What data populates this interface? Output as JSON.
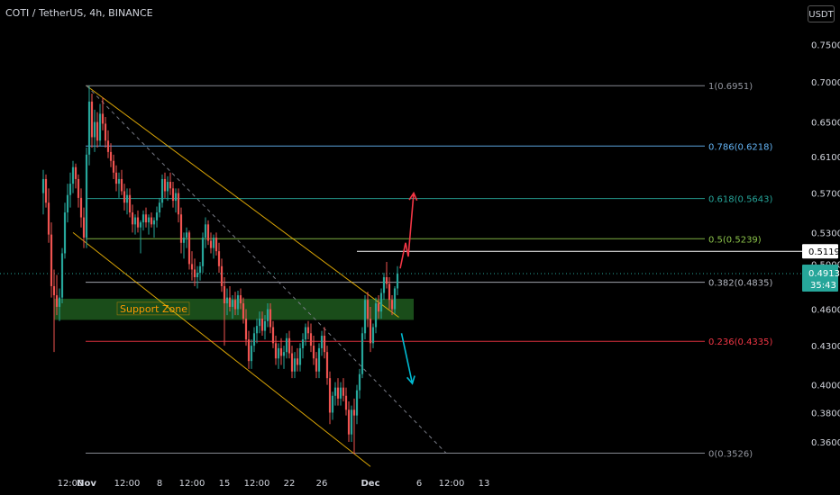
{
  "header": {
    "symbol_line": "COTI / TetherUS, 4h, BINANCE",
    "currency_button": "USDT"
  },
  "chart_data": {
    "type": "candlestick",
    "symbol": "COTI / TetherUS",
    "interval": "4h",
    "exchange": "BINANCE",
    "currency": "USDT",
    "ylim": [
      0.345,
      0.776
    ],
    "y_scale": "log",
    "y_ticks": [
      "0.7500",
      "0.7000",
      "0.6500",
      "0.6100",
      "0.5700",
      "0.5300",
      "0.5000",
      "0.4600",
      "0.4300",
      "0.4000",
      "0.3800",
      "0.3600"
    ],
    "x_ticks": [
      {
        "label": "12:00",
        "t": -24
      },
      {
        "label": "Nov",
        "t": 0
      },
      {
        "label": "12:00",
        "t": 60
      },
      {
        "label": "8",
        "t": 108
      },
      {
        "label": "12:00",
        "t": 156
      },
      {
        "label": "15",
        "t": 204
      },
      {
        "label": "12:00",
        "t": 252
      },
      {
        "label": "22",
        "t": 300
      },
      {
        "label": "26",
        "t": 348
      },
      {
        "label": "Dec",
        "t": 420
      },
      {
        "label": "6",
        "t": 492
      },
      {
        "label": "12:00",
        "t": 540
      },
      {
        "label": "13",
        "t": 588
      }
    ],
    "x_unit": "hours from Nov 1 00:00",
    "candles": [
      [
        -64,
        0.57,
        0.595,
        0.548,
        0.585
      ],
      [
        -60,
        0.585,
        0.59,
        0.555,
        0.56
      ],
      [
        -56,
        0.56,
        0.575,
        0.52,
        0.528
      ],
      [
        -52,
        0.528,
        0.54,
        0.47,
        0.48
      ],
      [
        -48,
        0.48,
        0.495,
        0.425,
        0.472
      ],
      [
        -44,
        0.472,
        0.49,
        0.455,
        0.462
      ],
      [
        -40,
        0.462,
        0.478,
        0.45,
        0.47
      ],
      [
        -36,
        0.47,
        0.515,
        0.465,
        0.51
      ],
      [
        -32,
        0.51,
        0.56,
        0.505,
        0.55
      ],
      [
        -28,
        0.55,
        0.58,
        0.54,
        0.568
      ],
      [
        -24,
        0.568,
        0.592,
        0.555,
        0.58
      ],
      [
        -20,
        0.58,
        0.605,
        0.57,
        0.598
      ],
      [
        -16,
        0.598,
        0.602,
        0.575,
        0.585
      ],
      [
        -12,
        0.585,
        0.59,
        0.555,
        0.565
      ],
      [
        -8,
        0.565,
        0.575,
        0.535,
        0.545
      ],
      [
        -4,
        0.545,
        0.555,
        0.515,
        0.525
      ],
      [
        0,
        0.525,
        0.62,
        0.515,
        0.612
      ],
      [
        4,
        0.612,
        0.695,
        0.6,
        0.675
      ],
      [
        8,
        0.675,
        0.685,
        0.62,
        0.632
      ],
      [
        12,
        0.632,
        0.665,
        0.615,
        0.65
      ],
      [
        16,
        0.65,
        0.662,
        0.62,
        0.628
      ],
      [
        20,
        0.628,
        0.672,
        0.622,
        0.66
      ],
      [
        24,
        0.66,
        0.68,
        0.64,
        0.648
      ],
      [
        28,
        0.648,
        0.656,
        0.62,
        0.628
      ],
      [
        32,
        0.628,
        0.64,
        0.608,
        0.615
      ],
      [
        36,
        0.615,
        0.625,
        0.598,
        0.605
      ],
      [
        40,
        0.605,
        0.612,
        0.585,
        0.592
      ],
      [
        44,
        0.592,
        0.6,
        0.572,
        0.58
      ],
      [
        48,
        0.58,
        0.592,
        0.565,
        0.585
      ],
      [
        52,
        0.585,
        0.595,
        0.568,
        0.572
      ],
      [
        56,
        0.572,
        0.58,
        0.552,
        0.56
      ],
      [
        60,
        0.56,
        0.575,
        0.548,
        0.568
      ],
      [
        64,
        0.568,
        0.575,
        0.545,
        0.55
      ],
      [
        68,
        0.55,
        0.558,
        0.53,
        0.538
      ],
      [
        72,
        0.538,
        0.548,
        0.528,
        0.545
      ],
      [
        76,
        0.545,
        0.552,
        0.53,
        0.535
      ],
      [
        80,
        0.535,
        0.542,
        0.51,
        0.54
      ],
      [
        84,
        0.54,
        0.552,
        0.532,
        0.548
      ],
      [
        88,
        0.548,
        0.555,
        0.535,
        0.54
      ],
      [
        92,
        0.54,
        0.548,
        0.528,
        0.545
      ],
      [
        96,
        0.545,
        0.55,
        0.535,
        0.538
      ],
      [
        100,
        0.538,
        0.545,
        0.525,
        0.542
      ],
      [
        104,
        0.542,
        0.556,
        0.535,
        0.55
      ],
      [
        108,
        0.55,
        0.565,
        0.545,
        0.56
      ],
      [
        112,
        0.56,
        0.59,
        0.555,
        0.585
      ],
      [
        116,
        0.585,
        0.592,
        0.565,
        0.572
      ],
      [
        120,
        0.572,
        0.588,
        0.562,
        0.582
      ],
      [
        124,
        0.582,
        0.592,
        0.568,
        0.575
      ],
      [
        128,
        0.575,
        0.582,
        0.555,
        0.562
      ],
      [
        132,
        0.562,
        0.575,
        0.55,
        0.57
      ],
      [
        136,
        0.57,
        0.575,
        0.54,
        0.548
      ],
      [
        140,
        0.548,
        0.555,
        0.51,
        0.52
      ],
      [
        144,
        0.52,
        0.53,
        0.505,
        0.525
      ],
      [
        148,
        0.525,
        0.535,
        0.515,
        0.53
      ],
      [
        152,
        0.53,
        0.532,
        0.495,
        0.5
      ],
      [
        156,
        0.5,
        0.512,
        0.485,
        0.495
      ],
      [
        160,
        0.495,
        0.505,
        0.48,
        0.488
      ],
      [
        164,
        0.488,
        0.498,
        0.478,
        0.492
      ],
      [
        168,
        0.492,
        0.502,
        0.485,
        0.498
      ],
      [
        172,
        0.498,
        0.53,
        0.492,
        0.525
      ],
      [
        176,
        0.525,
        0.545,
        0.515,
        0.538
      ],
      [
        180,
        0.538,
        0.542,
        0.518,
        0.522
      ],
      [
        184,
        0.522,
        0.53,
        0.51,
        0.515
      ],
      [
        188,
        0.515,
        0.528,
        0.505,
        0.525
      ],
      [
        192,
        0.525,
        0.53,
        0.508,
        0.512
      ],
      [
        196,
        0.512,
        0.52,
        0.492,
        0.498
      ],
      [
        200,
        0.498,
        0.505,
        0.475,
        0.48
      ],
      [
        204,
        0.48,
        0.488,
        0.43,
        0.465
      ],
      [
        208,
        0.465,
        0.478,
        0.455,
        0.47
      ],
      [
        212,
        0.47,
        0.48,
        0.458,
        0.462
      ],
      [
        216,
        0.462,
        0.472,
        0.452,
        0.468
      ],
      [
        220,
        0.468,
        0.475,
        0.455,
        0.46
      ],
      [
        224,
        0.46,
        0.476,
        0.455,
        0.472
      ],
      [
        228,
        0.472,
        0.478,
        0.46,
        0.465
      ],
      [
        232,
        0.465,
        0.47,
        0.448,
        0.452
      ],
      [
        236,
        0.452,
        0.46,
        0.43,
        0.435
      ],
      [
        240,
        0.435,
        0.442,
        0.412,
        0.418
      ],
      [
        244,
        0.418,
        0.435,
        0.412,
        0.43
      ],
      [
        248,
        0.43,
        0.445,
        0.425,
        0.44
      ],
      [
        252,
        0.44,
        0.452,
        0.432,
        0.446
      ],
      [
        256,
        0.446,
        0.458,
        0.44,
        0.452
      ],
      [
        260,
        0.452,
        0.458,
        0.438,
        0.442
      ],
      [
        264,
        0.442,
        0.455,
        0.435,
        0.45
      ],
      [
        268,
        0.45,
        0.465,
        0.445,
        0.46
      ],
      [
        272,
        0.46,
        0.465,
        0.44,
        0.445
      ],
      [
        276,
        0.445,
        0.45,
        0.428,
        0.432
      ],
      [
        280,
        0.432,
        0.438,
        0.415,
        0.42
      ],
      [
        284,
        0.42,
        0.432,
        0.412,
        0.428
      ],
      [
        288,
        0.428,
        0.436,
        0.415,
        0.422
      ],
      [
        292,
        0.422,
        0.43,
        0.412,
        0.425
      ],
      [
        296,
        0.425,
        0.44,
        0.42,
        0.436
      ],
      [
        300,
        0.436,
        0.442,
        0.42,
        0.424
      ],
      [
        304,
        0.424,
        0.43,
        0.405,
        0.41
      ],
      [
        308,
        0.41,
        0.425,
        0.405,
        0.42
      ],
      [
        312,
        0.42,
        0.428,
        0.41,
        0.415
      ],
      [
        316,
        0.415,
        0.432,
        0.41,
        0.428
      ],
      [
        320,
        0.428,
        0.44,
        0.42,
        0.435
      ],
      [
        324,
        0.435,
        0.448,
        0.43,
        0.445
      ],
      [
        328,
        0.445,
        0.45,
        0.435,
        0.44
      ],
      [
        332,
        0.44,
        0.448,
        0.425,
        0.43
      ],
      [
        336,
        0.43,
        0.438,
        0.415,
        0.42
      ],
      [
        340,
        0.42,
        0.425,
        0.405,
        0.41
      ],
      [
        344,
        0.41,
        0.432,
        0.405,
        0.428
      ],
      [
        348,
        0.428,
        0.442,
        0.422,
        0.438
      ],
      [
        352,
        0.438,
        0.445,
        0.42,
        0.425
      ],
      [
        356,
        0.425,
        0.43,
        0.4,
        0.405
      ],
      [
        360,
        0.405,
        0.41,
        0.372,
        0.38
      ],
      [
        364,
        0.38,
        0.395,
        0.375,
        0.392
      ],
      [
        368,
        0.392,
        0.402,
        0.385,
        0.398
      ],
      [
        372,
        0.398,
        0.405,
        0.385,
        0.39
      ],
      [
        376,
        0.39,
        0.402,
        0.385,
        0.398
      ],
      [
        380,
        0.398,
        0.405,
        0.388,
        0.392
      ],
      [
        384,
        0.392,
        0.398,
        0.378,
        0.382
      ],
      [
        388,
        0.382,
        0.388,
        0.36,
        0.365
      ],
      [
        392,
        0.365,
        0.385,
        0.36,
        0.382
      ],
      [
        396,
        0.382,
        0.39,
        0.352,
        0.378
      ],
      [
        400,
        0.378,
        0.4,
        0.372,
        0.396
      ],
      [
        404,
        0.396,
        0.412,
        0.39,
        0.408
      ],
      [
        408,
        0.408,
        0.445,
        0.405,
        0.44
      ],
      [
        412,
        0.44,
        0.472,
        0.435,
        0.468
      ],
      [
        416,
        0.468,
        0.475,
        0.445,
        0.452
      ],
      [
        420,
        0.452,
        0.462,
        0.425,
        0.432
      ],
      [
        424,
        0.432,
        0.448,
        0.428,
        0.445
      ],
      [
        428,
        0.445,
        0.47,
        0.44,
        0.465
      ],
      [
        432,
        0.465,
        0.472,
        0.452,
        0.458
      ],
      [
        436,
        0.458,
        0.478,
        0.452,
        0.474
      ],
      [
        440,
        0.474,
        0.492,
        0.468,
        0.488
      ],
      [
        444,
        0.488,
        0.502,
        0.478,
        0.482
      ],
      [
        448,
        0.482,
        0.488,
        0.46,
        0.468
      ],
      [
        452,
        0.468,
        0.472,
        0.455,
        0.46
      ],
      [
        456,
        0.46,
        0.48,
        0.456,
        0.478
      ],
      [
        460,
        0.478,
        0.498,
        0.472,
        0.4913
      ]
    ],
    "annotations": {
      "fibonacci": [
        {
          "level": "1",
          "price": 0.6951,
          "label": "1(0.6951)",
          "color": "#9598a1"
        },
        {
          "level": "0.786",
          "price": 0.6218,
          "label": "0.786(0.6218)",
          "color": "#64b5f6"
        },
        {
          "level": "0.618",
          "price": 0.5643,
          "label": "0.618(0.5643)",
          "color": "#26a69a"
        },
        {
          "level": "0.5",
          "price": 0.5239,
          "label": "0.5(0.5239)",
          "color": "#8bc34a"
        },
        {
          "level": "0.382",
          "price": 0.4835,
          "label": "0.382(0.4835)",
          "color": "#b2b5be"
        },
        {
          "level": "0.236",
          "price": 0.4335,
          "label": "0.236(0.4335)",
          "color": "#f23645"
        },
        {
          "level": "0",
          "price": 0.3526,
          "label": "0(0.3526)",
          "color": "#9598a1"
        }
      ],
      "support_zone": {
        "label": "Support Zone",
        "price_low": 0.451,
        "price_high": 0.469,
        "t_start": -48,
        "t_end": 484,
        "fill": "#1e5a1e",
        "label_color": "#ff9800"
      },
      "horizontal_line": {
        "price": 0.5119,
        "label": "0.5119",
        "t_start": 400,
        "t_end": 540
      },
      "current_price": {
        "price": 0.4913,
        "label": "0.4913",
        "countdown": "35:43",
        "badge_color": "#26a69a"
      },
      "channel": [
        {
          "t1": 0,
          "p1": 0.6951,
          "t2": 400,
          "p2": 0.48
        },
        {
          "t1": -20,
          "p1": 0.53,
          "t2": 420,
          "p2": 0.344
        }
      ],
      "dashed_trend": {
        "t1": 0,
        "p1": 0.6951,
        "t2": 532,
        "p2": 0.3526
      },
      "arrows": [
        {
          "direction": "up",
          "color": "#f23645",
          "points": [
            [
              464,
              0.496
            ],
            [
              472,
              0.52
            ],
            [
              476,
              0.507
            ],
            [
              484,
              0.57
            ]
          ]
        },
        {
          "direction": "down",
          "color": "#00bcd4",
          "points": [
            [
              466,
              0.44
            ],
            [
              482,
              0.401
            ]
          ]
        }
      ]
    },
    "colors": {
      "up": "#26a69a",
      "down": "#ef5350",
      "background": "#000000",
      "axis_text": "#d1d4dc"
    }
  }
}
